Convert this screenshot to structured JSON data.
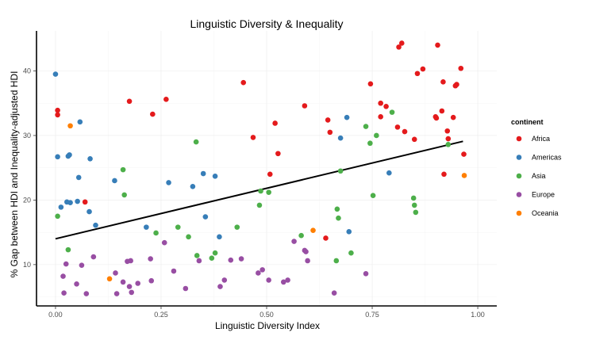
{
  "chart_data": {
    "type": "scatter",
    "title": "Linguistic Diversity & Inequality",
    "xlabel": "Linguistic Diversity Index",
    "ylabel": "% Gap between HDI and Inequality-adjusted HDI",
    "xlim": [
      -0.045,
      1.045
    ],
    "ylim": [
      3.6,
      46.2
    ],
    "x_ticks": [
      0,
      0.25,
      0.5,
      0.75,
      1.0
    ],
    "x_tick_labels": [
      "0.00",
      "0.25",
      "0.50",
      "0.75",
      "1.00"
    ],
    "y_ticks": [
      10,
      20,
      30,
      40
    ],
    "y_tick_labels": [
      "10",
      "20",
      "30",
      "40"
    ],
    "legend": {
      "title": "continent",
      "position": "right",
      "entries": [
        {
          "name": "Africa",
          "color": "#e41a1c"
        },
        {
          "name": "Americas",
          "color": "#377eb8"
        },
        {
          "name": "Asia",
          "color": "#4daf4a"
        },
        {
          "name": "Europe",
          "color": "#984ea3"
        },
        {
          "name": "Oceania",
          "color": "#ff7f00"
        }
      ]
    },
    "trend_line": {
      "x": [
        0.0,
        0.965
      ],
      "y": [
        14.0,
        29.1
      ]
    },
    "series": [
      {
        "name": "Africa",
        "color": "#e41a1c",
        "points": [
          [
            0.005,
            33.9
          ],
          [
            0.005,
            33.2
          ],
          [
            0.07,
            19.7
          ],
          [
            0.175,
            35.3
          ],
          [
            0.23,
            33.3
          ],
          [
            0.262,
            35.6
          ],
          [
            0.445,
            38.2
          ],
          [
            0.468,
            29.7
          ],
          [
            0.508,
            24.0
          ],
          [
            0.52,
            31.9
          ],
          [
            0.527,
            27.2
          ],
          [
            0.59,
            34.6
          ],
          [
            0.64,
            14.1
          ],
          [
            0.645,
            32.4
          ],
          [
            0.65,
            30.5
          ],
          [
            0.746,
            38.0
          ],
          [
            0.77,
            35.0
          ],
          [
            0.77,
            32.9
          ],
          [
            0.783,
            34.5
          ],
          [
            0.81,
            31.3
          ],
          [
            0.813,
            43.7
          ],
          [
            0.82,
            44.3
          ],
          [
            0.827,
            30.6
          ],
          [
            0.85,
            29.4
          ],
          [
            0.857,
            39.6
          ],
          [
            0.87,
            40.3
          ],
          [
            0.9,
            32.9
          ],
          [
            0.902,
            32.7
          ],
          [
            0.905,
            44.0
          ],
          [
            0.915,
            33.8
          ],
          [
            0.918,
            38.3
          ],
          [
            0.92,
            24.0
          ],
          [
            0.928,
            30.7
          ],
          [
            0.93,
            29.5
          ],
          [
            0.942,
            32.8
          ],
          [
            0.947,
            37.7
          ],
          [
            0.95,
            37.9
          ],
          [
            0.96,
            40.4
          ],
          [
            0.967,
            27.1
          ]
        ]
      },
      {
        "name": "Americas",
        "color": "#377eb8",
        "points": [
          [
            0.0,
            39.5
          ],
          [
            0.005,
            26.7
          ],
          [
            0.013,
            18.9
          ],
          [
            0.027,
            19.7
          ],
          [
            0.03,
            26.8
          ],
          [
            0.033,
            27.0
          ],
          [
            0.035,
            19.6
          ],
          [
            0.052,
            19.8
          ],
          [
            0.055,
            23.5
          ],
          [
            0.058,
            32.1
          ],
          [
            0.08,
            18.2
          ],
          [
            0.082,
            26.4
          ],
          [
            0.095,
            16.1
          ],
          [
            0.14,
            23.0
          ],
          [
            0.215,
            15.8
          ],
          [
            0.268,
            22.7
          ],
          [
            0.325,
            22.1
          ],
          [
            0.35,
            24.1
          ],
          [
            0.355,
            17.4
          ],
          [
            0.378,
            23.7
          ],
          [
            0.388,
            14.3
          ],
          [
            0.675,
            29.6
          ],
          [
            0.69,
            32.8
          ],
          [
            0.695,
            15.1
          ],
          [
            0.79,
            24.2
          ]
        ]
      },
      {
        "name": "Asia",
        "color": "#4daf4a",
        "points": [
          [
            0.005,
            17.5
          ],
          [
            0.03,
            12.3
          ],
          [
            0.16,
            24.7
          ],
          [
            0.163,
            20.8
          ],
          [
            0.238,
            14.9
          ],
          [
            0.29,
            15.8
          ],
          [
            0.315,
            14.3
          ],
          [
            0.333,
            29.0
          ],
          [
            0.335,
            11.4
          ],
          [
            0.37,
            11.0
          ],
          [
            0.378,
            11.8
          ],
          [
            0.43,
            15.8
          ],
          [
            0.483,
            19.2
          ],
          [
            0.486,
            21.4
          ],
          [
            0.505,
            21.2
          ],
          [
            0.582,
            14.5
          ],
          [
            0.665,
            10.6
          ],
          [
            0.667,
            18.6
          ],
          [
            0.67,
            17.2
          ],
          [
            0.675,
            24.5
          ],
          [
            0.7,
            11.8
          ],
          [
            0.735,
            31.4
          ],
          [
            0.745,
            28.8
          ],
          [
            0.752,
            20.7
          ],
          [
            0.76,
            30.0
          ],
          [
            0.797,
            33.6
          ],
          [
            0.848,
            20.3
          ],
          [
            0.85,
            19.2
          ],
          [
            0.853,
            18.1
          ],
          [
            0.93,
            28.6
          ]
        ]
      },
      {
        "name": "Europe",
        "color": "#984ea3",
        "points": [
          [
            0.018,
            8.2
          ],
          [
            0.02,
            5.6
          ],
          [
            0.025,
            10.1
          ],
          [
            0.05,
            7.0
          ],
          [
            0.062,
            9.9
          ],
          [
            0.073,
            5.5
          ],
          [
            0.09,
            11.2
          ],
          [
            0.142,
            8.7
          ],
          [
            0.145,
            5.5
          ],
          [
            0.16,
            7.3
          ],
          [
            0.17,
            10.5
          ],
          [
            0.175,
            6.6
          ],
          [
            0.18,
            5.7
          ],
          [
            0.178,
            10.6
          ],
          [
            0.195,
            7.1
          ],
          [
            0.225,
            10.9
          ],
          [
            0.227,
            7.5
          ],
          [
            0.258,
            13.4
          ],
          [
            0.28,
            9.0
          ],
          [
            0.308,
            6.3
          ],
          [
            0.34,
            10.6
          ],
          [
            0.39,
            6.6
          ],
          [
            0.4,
            7.6
          ],
          [
            0.415,
            10.7
          ],
          [
            0.44,
            10.9
          ],
          [
            0.48,
            8.7
          ],
          [
            0.49,
            9.2
          ],
          [
            0.505,
            7.6
          ],
          [
            0.54,
            7.3
          ],
          [
            0.55,
            7.6
          ],
          [
            0.565,
            13.6
          ],
          [
            0.59,
            12.2
          ],
          [
            0.593,
            12.0
          ],
          [
            0.597,
            10.6
          ],
          [
            0.66,
            5.6
          ],
          [
            0.735,
            8.6
          ]
        ]
      },
      {
        "name": "Oceania",
        "color": "#ff7f00",
        "points": [
          [
            0.035,
            31.5
          ],
          [
            0.128,
            7.8
          ],
          [
            0.61,
            15.3
          ],
          [
            0.968,
            23.8
          ]
        ]
      }
    ]
  }
}
